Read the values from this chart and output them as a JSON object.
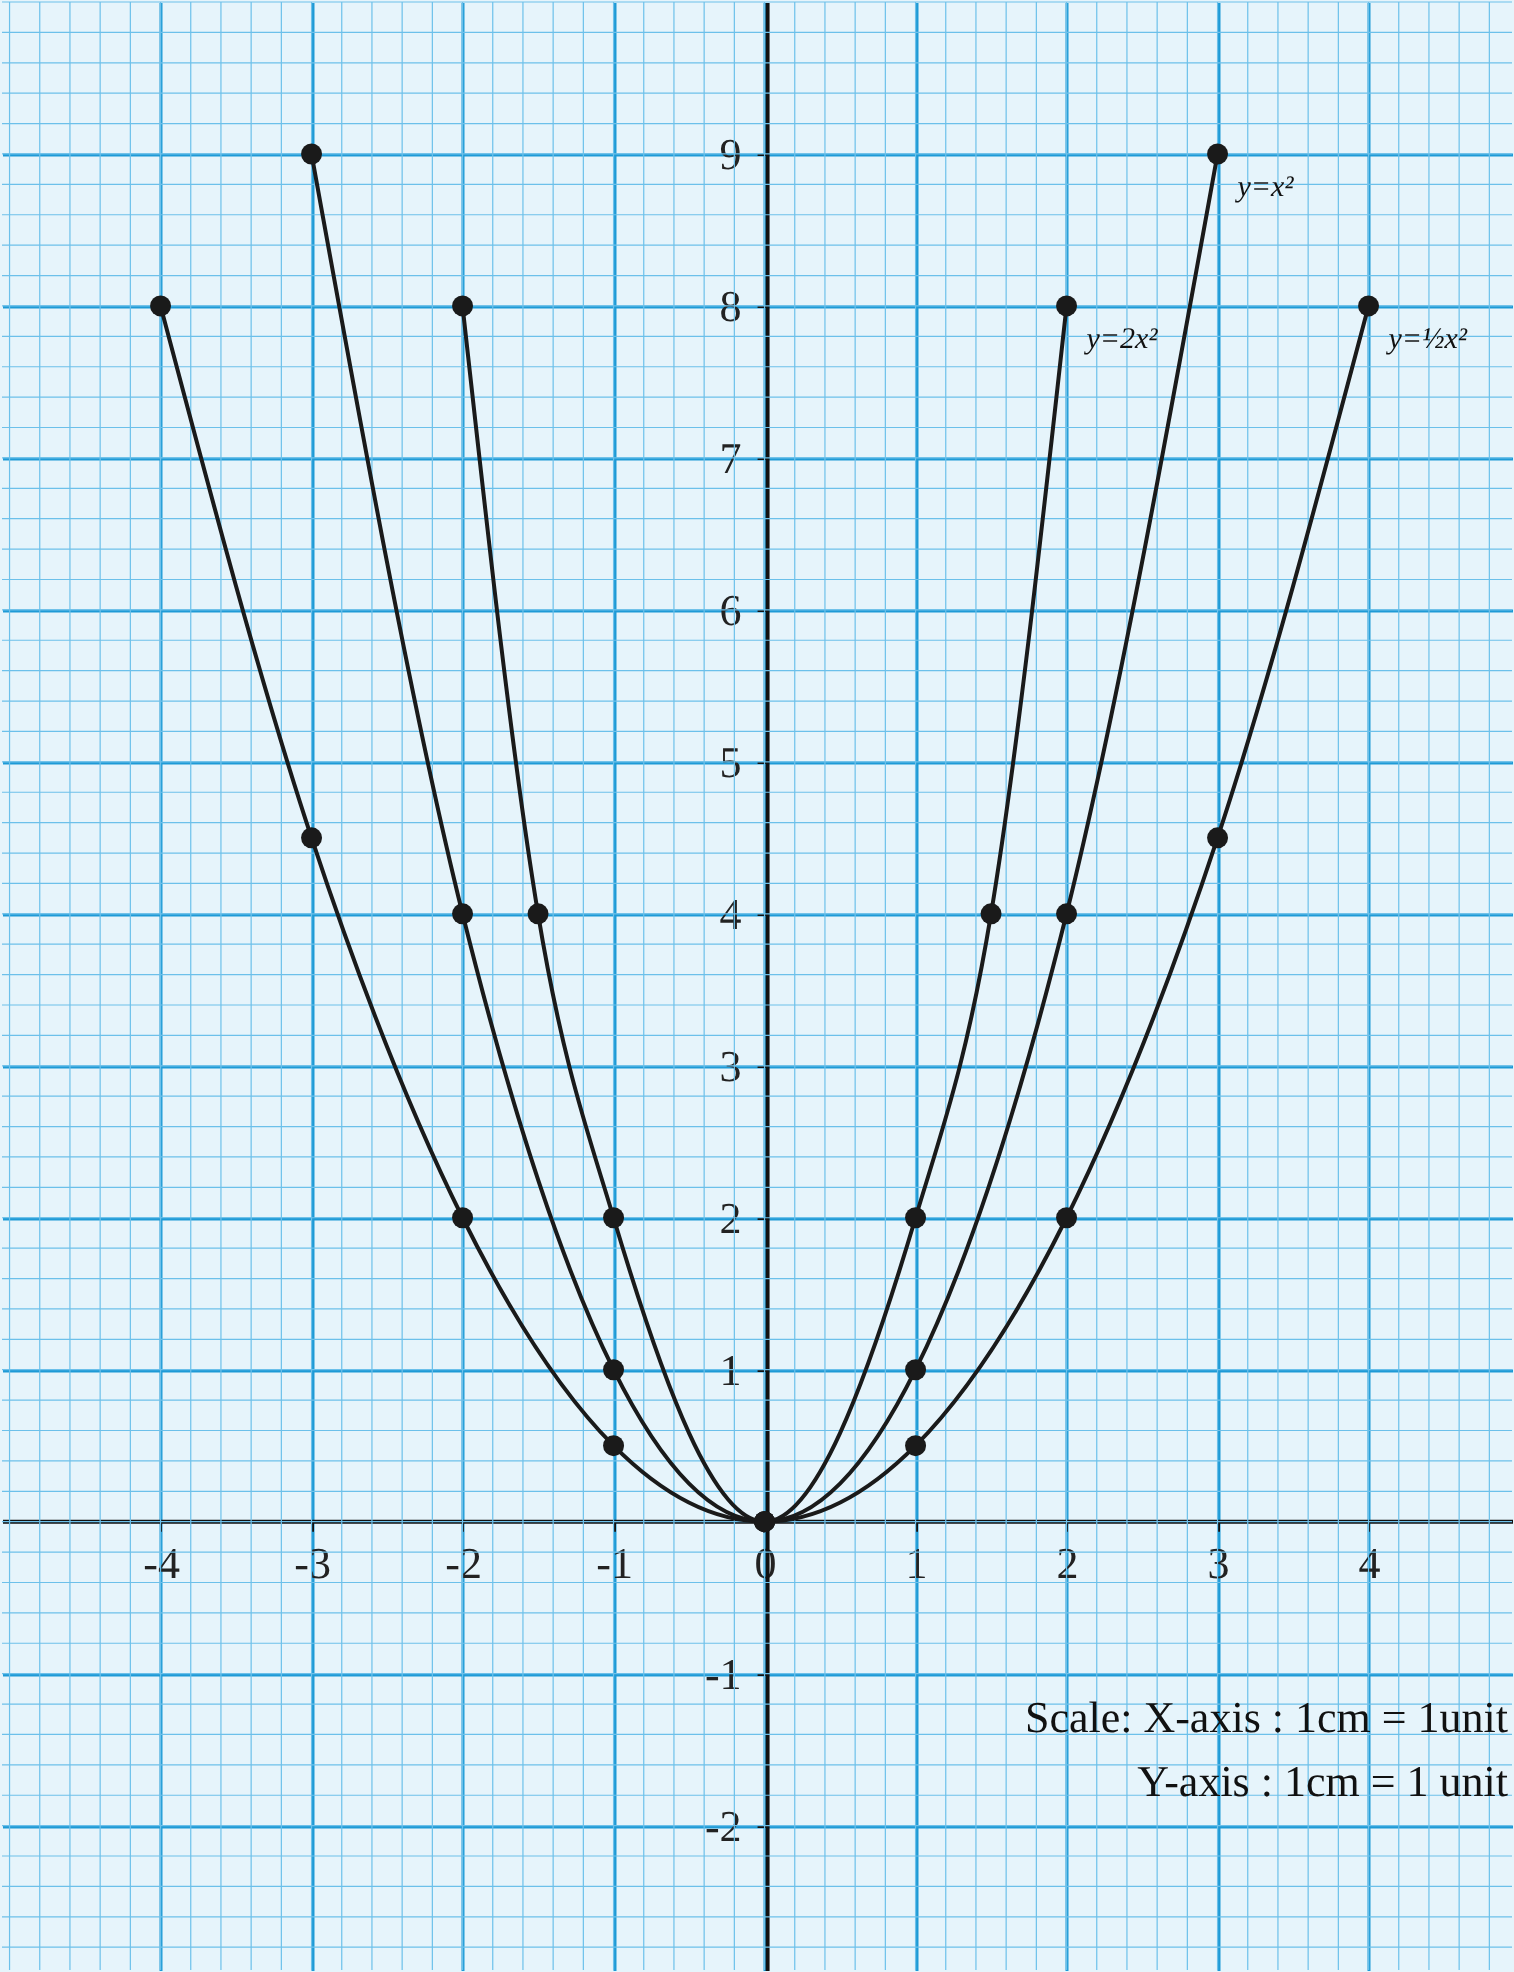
{
  "chart_data": {
    "type": "line",
    "series": [
      {
        "name": "y=½x²",
        "color": "#1a1a1a",
        "x": [
          -4,
          -3,
          -2,
          -1,
          0,
          1,
          2,
          3,
          4
        ],
        "values": [
          8,
          4.5,
          2,
          0.5,
          0,
          0.5,
          2,
          4.5,
          8
        ]
      },
      {
        "name": "y=x²",
        "color": "#1a1a1a",
        "x": [
          -3,
          -2,
          -1,
          0,
          1,
          2,
          3
        ],
        "values": [
          9,
          4,
          1,
          0,
          1,
          4,
          9
        ]
      },
      {
        "name": "y=2x²",
        "color": "#1a1a1a",
        "x": [
          -2,
          -1.5,
          -1,
          0,
          1,
          1.5,
          2
        ],
        "values": [
          8,
          4,
          2,
          0,
          2,
          4,
          8
        ]
      }
    ],
    "xlim": [
      -5.05,
      4.95
    ],
    "ylim": [
      -2.95,
      10
    ],
    "xticks": [
      -4,
      -3,
      -2,
      -1,
      0,
      1,
      2,
      3,
      4
    ],
    "yticks": [
      -2,
      -1,
      1,
      2,
      3,
      4,
      5,
      6,
      7,
      8,
      9
    ],
    "grid": true,
    "marker": "circle",
    "line_style": "solid",
    "legend": false,
    "annotations": [
      "Scale: X-axis : 1cm = 1unit",
      "Y-axis :  1cm = 1 unit"
    ]
  }
}
